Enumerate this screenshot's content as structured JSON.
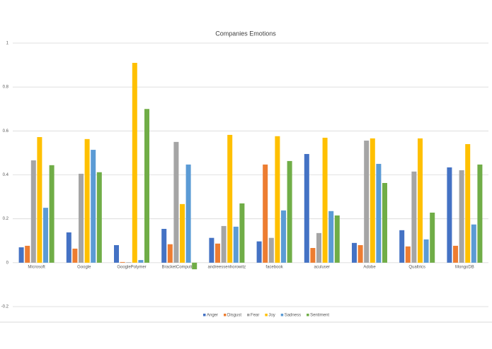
{
  "chart_data": {
    "type": "bar",
    "title": "Companies Emotions",
    "categories": [
      "Microsoft",
      "Google",
      "GooglePolymer",
      "BracketComputing",
      "andreessenhorowitz",
      "facebook",
      "aculuser",
      "Adobe",
      "Qualtrics",
      "MongoDB"
    ],
    "series": [
      {
        "name": "Anger",
        "color": "#4472c4",
        "values": [
          0.07,
          0.138,
          0.08,
          0.154,
          0.113,
          0.097,
          0.495,
          0.09,
          0.148,
          0.434
        ]
      },
      {
        "name": "Disgust",
        "color": "#ed7d31",
        "values": [
          0.077,
          0.064,
          0.003,
          0.084,
          0.087,
          0.447,
          0.067,
          0.08,
          0.074,
          0.077
        ]
      },
      {
        "name": "Fear",
        "color": "#a5a5a5",
        "values": [
          0.466,
          0.405,
          0.002,
          0.55,
          0.167,
          0.113,
          0.135,
          0.556,
          0.415,
          0.421
        ]
      },
      {
        "name": "Joy",
        "color": "#ffc000",
        "values": [
          0.572,
          0.563,
          0.91,
          0.267,
          0.582,
          0.576,
          0.569,
          0.566,
          0.566,
          0.54
        ]
      },
      {
        "name": "Sadness",
        "color": "#5b9bd5",
        "values": [
          0.25,
          0.514,
          0.012,
          0.447,
          0.164,
          0.238,
          0.235,
          0.45,
          0.106,
          0.174
        ]
      },
      {
        "name": "Sentiment",
        "color": "#70ad47",
        "values": [
          0.444,
          0.412,
          0.7,
          -0.03,
          0.27,
          0.463,
          0.215,
          0.363,
          0.228,
          0.447
        ]
      }
    ],
    "ylim": [
      -0.2,
      1
    ],
    "yticks": [
      -0.2,
      0,
      0.2,
      0.4,
      0.6,
      0.8,
      1
    ],
    "grid": true,
    "legend": "bottom"
  }
}
